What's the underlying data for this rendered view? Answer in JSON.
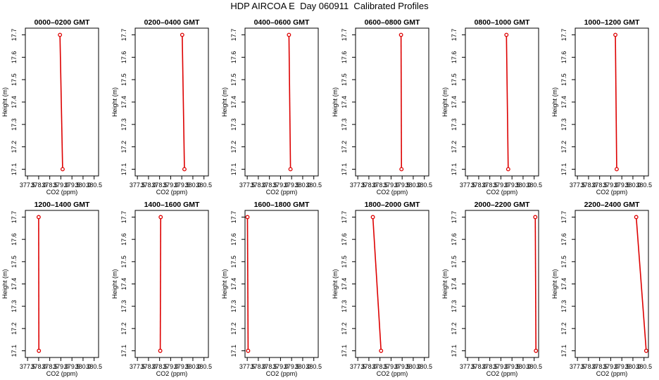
{
  "title": "HDP AIRCOA E  Day 060911  Calibrated Profiles",
  "colors": {
    "profile": "#dd0000",
    "axis": "#000000"
  },
  "chart_data": [
    {
      "type": "line",
      "title": "0000–0200 GMT",
      "xlabel": "CO2 (ppm)",
      "ylabel": "Height (m)",
      "xlim": [
        377.4,
        380.7
      ],
      "ylim": [
        17.07,
        17.73
      ],
      "xticks": [
        "377.5",
        "378.0",
        "378.5",
        "379.0",
        "379.5",
        "380.0",
        "380.5"
      ],
      "yticks": [
        "17.1",
        "17.2",
        "17.3",
        "17.4",
        "17.5",
        "17.6",
        "17.7"
      ],
      "points": [
        {
          "x": 378.96,
          "y": 17.7
        },
        {
          "x": 379.08,
          "y": 17.1
        }
      ]
    },
    {
      "type": "line",
      "title": "0200–0400 GMT",
      "xlabel": "CO2 (ppm)",
      "ylabel": "Height (m)",
      "xlim": [
        377.4,
        380.7
      ],
      "ylim": [
        17.07,
        17.73
      ],
      "xticks": [
        "377.5",
        "378.0",
        "378.5",
        "379.0",
        "379.5",
        "380.0",
        "380.5"
      ],
      "yticks": [
        "17.1",
        "17.2",
        "17.3",
        "17.4",
        "17.5",
        "17.6",
        "17.7"
      ],
      "points": [
        {
          "x": 379.52,
          "y": 17.7
        },
        {
          "x": 379.62,
          "y": 17.1
        }
      ]
    },
    {
      "type": "line",
      "title": "0400–0600 GMT",
      "xlabel": "CO2 (ppm)",
      "ylabel": "Height (m)",
      "xlim": [
        377.4,
        380.7
      ],
      "ylim": [
        17.07,
        17.73
      ],
      "xticks": [
        "377.5",
        "378.0",
        "378.5",
        "379.0",
        "379.5",
        "380.0",
        "380.5"
      ],
      "yticks": [
        "17.1",
        "17.2",
        "17.3",
        "17.4",
        "17.5",
        "17.6",
        "17.7"
      ],
      "points": [
        {
          "x": 379.38,
          "y": 17.7
        },
        {
          "x": 379.45,
          "y": 17.1
        }
      ]
    },
    {
      "type": "line",
      "title": "0600–0800 GMT",
      "xlabel": "CO2 (ppm)",
      "ylabel": "Height (m)",
      "xlim": [
        377.4,
        380.7
      ],
      "ylim": [
        17.07,
        17.73
      ],
      "xticks": [
        "377.5",
        "378.0",
        "378.5",
        "379.0",
        "379.5",
        "380.0",
        "380.5"
      ],
      "yticks": [
        "17.1",
        "17.2",
        "17.3",
        "17.4",
        "17.5",
        "17.6",
        "17.7"
      ],
      "points": [
        {
          "x": 379.45,
          "y": 17.7
        },
        {
          "x": 379.47,
          "y": 17.1
        }
      ]
    },
    {
      "type": "line",
      "title": "0800–1000 GMT",
      "xlabel": "CO2 (ppm)",
      "ylabel": "Height (m)",
      "xlim": [
        377.4,
        380.7
      ],
      "ylim": [
        17.07,
        17.73
      ],
      "xticks": [
        "377.5",
        "378.0",
        "378.5",
        "379.0",
        "379.5",
        "380.0",
        "380.5"
      ],
      "yticks": [
        "17.1",
        "17.2",
        "17.3",
        "17.4",
        "17.5",
        "17.6",
        "17.7"
      ],
      "points": [
        {
          "x": 379.25,
          "y": 17.7
        },
        {
          "x": 379.33,
          "y": 17.1
        }
      ]
    },
    {
      "type": "line",
      "title": "1000–1200 GMT",
      "xlabel": "CO2 (ppm)",
      "ylabel": "Height (m)",
      "xlim": [
        377.4,
        380.7
      ],
      "ylim": [
        17.07,
        17.73
      ],
      "xticks": [
        "377.5",
        "378.0",
        "378.5",
        "379.0",
        "379.5",
        "380.0",
        "380.5"
      ],
      "yticks": [
        "17.1",
        "17.2",
        "17.3",
        "17.4",
        "17.5",
        "17.6",
        "17.7"
      ],
      "points": [
        {
          "x": 379.21,
          "y": 17.7
        },
        {
          "x": 379.27,
          "y": 17.1
        }
      ]
    },
    {
      "type": "line",
      "title": "1200–1400 GMT",
      "xlabel": "CO2 (ppm)",
      "ylabel": "Height (m)",
      "xlim": [
        377.4,
        380.7
      ],
      "ylim": [
        17.07,
        17.73
      ],
      "xticks": [
        "377.5",
        "378.0",
        "378.5",
        "379.0",
        "379.5",
        "380.0",
        "380.5"
      ],
      "yticks": [
        "17.1",
        "17.2",
        "17.3",
        "17.4",
        "17.5",
        "17.6",
        "17.7"
      ],
      "points": [
        {
          "x": 378.0,
          "y": 17.7
        },
        {
          "x": 378.01,
          "y": 17.1
        }
      ]
    },
    {
      "type": "line",
      "title": "1400–1600 GMT",
      "xlabel": "CO2 (ppm)",
      "ylabel": "Height (m)",
      "xlim": [
        377.4,
        380.7
      ],
      "ylim": [
        17.07,
        17.73
      ],
      "xticks": [
        "377.5",
        "378.0",
        "378.5",
        "379.0",
        "379.5",
        "380.0",
        "380.5"
      ],
      "yticks": [
        "17.1",
        "17.2",
        "17.3",
        "17.4",
        "17.5",
        "17.6",
        "17.7"
      ],
      "points": [
        {
          "x": 378.55,
          "y": 17.7
        },
        {
          "x": 378.53,
          "y": 17.1
        }
      ]
    },
    {
      "type": "line",
      "title": "1600–1800 GMT",
      "xlabel": "CO2 (ppm)",
      "ylabel": "Height (m)",
      "xlim": [
        377.4,
        380.7
      ],
      "ylim": [
        17.07,
        17.73
      ],
      "xticks": [
        "377.5",
        "378.0",
        "378.5",
        "379.0",
        "379.5",
        "380.0",
        "380.5"
      ],
      "yticks": [
        "17.1",
        "17.2",
        "17.3",
        "17.4",
        "17.5",
        "17.6",
        "17.7"
      ],
      "points": [
        {
          "x": 377.51,
          "y": 17.7
        },
        {
          "x": 377.54,
          "y": 17.1
        }
      ]
    },
    {
      "type": "line",
      "title": "1800–2000 GMT",
      "xlabel": "CO2 (ppm)",
      "ylabel": "Height (m)",
      "xlim": [
        377.4,
        380.7
      ],
      "ylim": [
        17.07,
        17.73
      ],
      "xticks": [
        "377.5",
        "378.0",
        "378.5",
        "379.0",
        "379.5",
        "380.0",
        "380.5"
      ],
      "yticks": [
        "17.1",
        "17.2",
        "17.3",
        "17.4",
        "17.5",
        "17.6",
        "17.7"
      ],
      "points": [
        {
          "x": 378.18,
          "y": 17.7
        },
        {
          "x": 378.55,
          "y": 17.1
        }
      ]
    },
    {
      "type": "line",
      "title": "2000–2200 GMT",
      "xlabel": "CO2 (ppm)",
      "ylabel": "Height (m)",
      "xlim": [
        377.4,
        380.7
      ],
      "ylim": [
        17.07,
        17.73
      ],
      "xticks": [
        "377.5",
        "378.0",
        "378.5",
        "379.0",
        "379.5",
        "380.0",
        "380.5"
      ],
      "yticks": [
        "17.1",
        "17.2",
        "17.3",
        "17.4",
        "17.5",
        "17.6",
        "17.7"
      ],
      "points": [
        {
          "x": 380.55,
          "y": 17.7
        },
        {
          "x": 380.58,
          "y": 17.1
        }
      ]
    },
    {
      "type": "line",
      "title": "2200–2400 GMT",
      "xlabel": "CO2 (ppm)",
      "ylabel": "Height (m)",
      "xlim": [
        377.4,
        380.7
      ],
      "ylim": [
        17.07,
        17.73
      ],
      "xticks": [
        "377.5",
        "378.0",
        "378.5",
        "379.0",
        "379.5",
        "380.0",
        "380.5"
      ],
      "yticks": [
        "17.1",
        "17.2",
        "17.3",
        "17.4",
        "17.5",
        "17.6",
        "17.7"
      ],
      "points": [
        {
          "x": 380.15,
          "y": 17.7
        },
        {
          "x": 380.6,
          "y": 17.1
        }
      ]
    }
  ]
}
